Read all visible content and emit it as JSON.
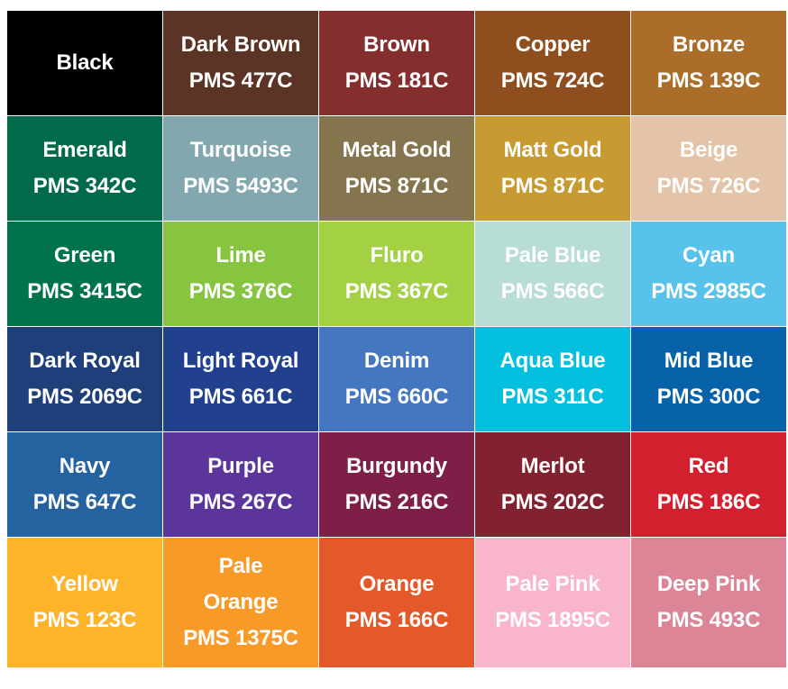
{
  "swatches": [
    {
      "name": [
        "Black"
      ],
      "pms": "",
      "color": "#000000"
    },
    {
      "name": [
        "Dark Brown"
      ],
      "pms": "PMS 477C",
      "color": "#5B3425"
    },
    {
      "name": [
        "Brown"
      ],
      "pms": "PMS 181C",
      "color": "#842F2E"
    },
    {
      "name": [
        "Copper"
      ],
      "pms": "PMS 724C",
      "color": "#8E4E1E"
    },
    {
      "name": [
        "Bronze"
      ],
      "pms": "PMS 139C",
      "color": "#AA6E2A"
    },
    {
      "name": [
        "Emerald"
      ],
      "pms": "PMS 342C",
      "color": "#006A4A"
    },
    {
      "name": [
        "Turquoise"
      ],
      "pms": "PMS 5493C",
      "color": "#83A7AF"
    },
    {
      "name": [
        "Metal Gold"
      ],
      "pms": "PMS 871C",
      "color": "#84754E"
    },
    {
      "name": [
        "Matt Gold"
      ],
      "pms": "PMS 871C",
      "color": "#C79A32"
    },
    {
      "name": [
        "Beige"
      ],
      "pms": "PMS 726C",
      "color": "#E3C4A9"
    },
    {
      "name": [
        "Green"
      ],
      "pms": "PMS 3415C",
      "color": "#00734D"
    },
    {
      "name": [
        "Lime"
      ],
      "pms": "PMS 376C",
      "color": "#87C540"
    },
    {
      "name": [
        "Fluro"
      ],
      "pms": "PMS 367C",
      "color": "#A4D044"
    },
    {
      "name": [
        "Pale Blue"
      ],
      "pms": "PMS 566C",
      "color": "#B7DDD6"
    },
    {
      "name": [
        "Cyan"
      ],
      "pms": "PMS 2985C",
      "color": "#59C2EA"
    },
    {
      "name": [
        "Dark Royal"
      ],
      "pms": "PMS 2069C",
      "color": "#1F3F7A"
    },
    {
      "name": [
        "Light Royal"
      ],
      "pms": "PMS 661C",
      "color": "#21418F"
    },
    {
      "name": [
        "Denim"
      ],
      "pms": "PMS 660C",
      "color": "#4577C1"
    },
    {
      "name": [
        "Aqua Blue"
      ],
      "pms": "PMS 311C",
      "color": "#05BFDE"
    },
    {
      "name": [
        "Mid Blue"
      ],
      "pms": "PMS 300C",
      "color": "#0762A8"
    },
    {
      "name": [
        "Navy"
      ],
      "pms": "PMS 647C",
      "color": "#2562A0"
    },
    {
      "name": [
        "Purple"
      ],
      "pms": "PMS 267C",
      "color": "#5B359B"
    },
    {
      "name": [
        "Burgundy"
      ],
      "pms": "PMS 216C",
      "color": "#7E1F48"
    },
    {
      "name": [
        "Merlot"
      ],
      "pms": "PMS 202C",
      "color": "#82212F"
    },
    {
      "name": [
        "Red"
      ],
      "pms": "PMS 186C",
      "color": "#D3202F"
    },
    {
      "name": [
        "Yellow"
      ],
      "pms": "PMS 123C",
      "color": "#FDB42A"
    },
    {
      "name": [
        "Pale",
        "Orange"
      ],
      "pms": "PMS 1375C",
      "color": "#F89A28"
    },
    {
      "name": [
        "Orange"
      ],
      "pms": "PMS 166C",
      "color": "#E4592A"
    },
    {
      "name": [
        "Pale Pink"
      ],
      "pms": "PMS 1895C",
      "color": "#F8B5CC"
    },
    {
      "name": [
        "Deep Pink"
      ],
      "pms": "PMS 493C",
      "color": "#DB8596"
    }
  ]
}
